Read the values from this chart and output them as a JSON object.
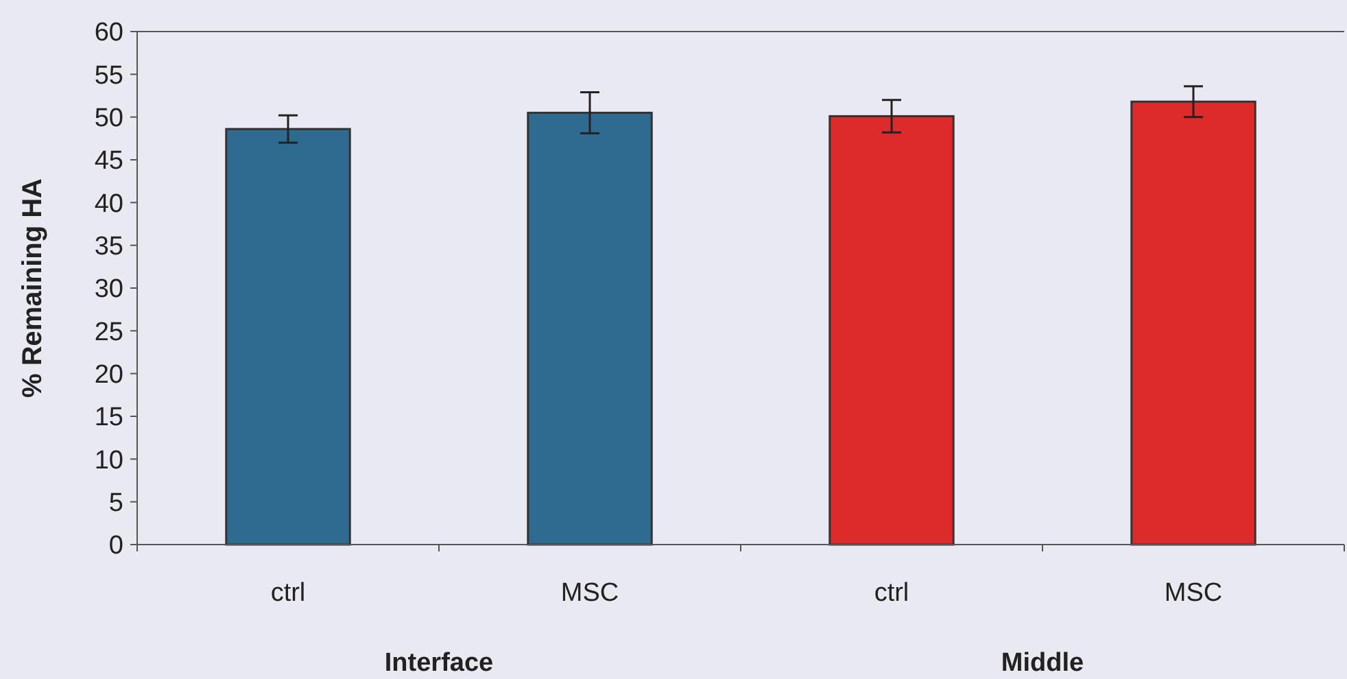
{
  "chart_data": {
    "type": "bar",
    "ylabel": "% Remaining HA",
    "categories": [
      "ctrl",
      "MSC",
      "ctrl",
      "MSC"
    ],
    "values": [
      48.6,
      50.5,
      50.1,
      51.8
    ],
    "errors": [
      1.6,
      2.4,
      1.9,
      1.8
    ],
    "colors": [
      "#2f6a90",
      "#2f6a90",
      "#dd2a2a",
      "#dd2a2a"
    ],
    "ylim": [
      0,
      60
    ],
    "yticks": [
      0,
      5,
      10,
      15,
      20,
      25,
      30,
      35,
      40,
      45,
      50,
      55,
      60
    ],
    "annotations": [
      "Interface",
      "Middle"
    ],
    "grid": false
  }
}
